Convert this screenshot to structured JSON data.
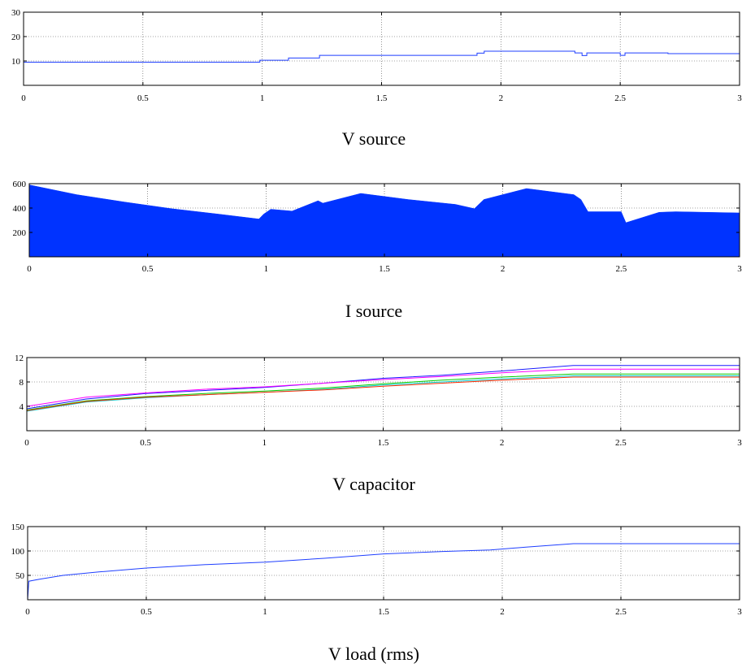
{
  "chart_data": [
    {
      "type": "line",
      "title": "V source",
      "xlim": [
        0,
        3
      ],
      "ylim": [
        0,
        30
      ],
      "xticks": [
        0,
        0.5,
        1,
        1.5,
        2,
        2.5,
        3
      ],
      "yticks": [
        10,
        20,
        30
      ],
      "grid": true,
      "series": [
        {
          "color": "#1f3fff",
          "x": [
            0,
            0.99,
            0.99,
            1.11,
            1.11,
            1.24,
            1.24,
            1.9,
            1.9,
            1.93,
            1.93,
            2.31,
            2.31,
            2.34,
            2.34,
            2.36,
            2.36,
            2.5,
            2.5,
            2.52,
            2.52,
            2.7,
            2.7,
            3.0
          ],
          "y": [
            9.5,
            9.5,
            10.3,
            10.3,
            11.2,
            11.2,
            12.3,
            12.3,
            13.2,
            13.2,
            14.0,
            14.0,
            13.3,
            13.3,
            12.2,
            12.2,
            13.3,
            13.3,
            12.3,
            12.3,
            13.3,
            13.3,
            13.0,
            13.0
          ]
        }
      ]
    },
    {
      "type": "area",
      "title": "I source",
      "xlim": [
        0,
        3
      ],
      "ylim": [
        0,
        600
      ],
      "xticks": [
        0,
        0.5,
        1,
        1.5,
        2,
        2.5,
        3
      ],
      "yticks": [
        200,
        400,
        600
      ],
      "grid": true,
      "series": [
        {
          "color": "#0033ff",
          "x": [
            0,
            0.2,
            0.4,
            0.6,
            0.8,
            0.97,
            0.97,
            0.99,
            0.99,
            1.02,
            1.02,
            1.11,
            1.11,
            1.22,
            1.22,
            1.24,
            1.24,
            1.4,
            1.6,
            1.8,
            1.88,
            1.88,
            1.92,
            1.92,
            2.1,
            2.3,
            2.3,
            2.33,
            2.33,
            2.36,
            2.36,
            2.5,
            2.5,
            2.52,
            2.52,
            2.66,
            2.66,
            2.73,
            2.73,
            3.0
          ],
          "y": [
            590,
            510,
            450,
            395,
            350,
            310,
            310,
            350,
            350,
            390,
            390,
            375,
            375,
            460,
            460,
            440,
            440,
            520,
            470,
            430,
            395,
            395,
            470,
            470,
            560,
            510,
            510,
            470,
            470,
            370,
            370,
            370,
            370,
            280,
            280,
            365,
            365,
            370,
            370,
            360
          ]
        }
      ]
    },
    {
      "type": "line",
      "title": "V capacitor",
      "xlim": [
        0,
        3
      ],
      "ylim": [
        0,
        12
      ],
      "xticks": [
        0,
        0.5,
        1,
        1.5,
        2,
        2.5,
        3
      ],
      "yticks": [
        4,
        8,
        12
      ],
      "grid": true,
      "series": [
        {
          "color": "#1a1aff",
          "x": [
            0,
            0.25,
            0.5,
            0.75,
            1.0,
            1.25,
            1.5,
            1.75,
            2.0,
            2.3,
            2.5,
            2.75,
            3.0
          ],
          "y": [
            3.6,
            5.2,
            6.1,
            6.6,
            7.1,
            7.8,
            8.6,
            9.1,
            9.8,
            10.7,
            10.7,
            10.7,
            10.7
          ]
        },
        {
          "color": "#ff00ff",
          "x": [
            0,
            0.25,
            0.5,
            0.75,
            1.0,
            1.25,
            1.5,
            1.75,
            2.0,
            2.3,
            2.5,
            2.75,
            3.0
          ],
          "y": [
            4.0,
            5.5,
            6.2,
            6.8,
            7.2,
            7.8,
            8.4,
            8.9,
            9.5,
            10.1,
            10.1,
            10.1,
            10.1
          ]
        },
        {
          "color": "#00cc00",
          "x": [
            0,
            0.25,
            0.5,
            0.75,
            1.0,
            1.25,
            1.5,
            1.75,
            2.0,
            2.3,
            2.5,
            2.75,
            3.0
          ],
          "y": [
            3.4,
            4.9,
            5.6,
            6.1,
            6.5,
            7.0,
            7.7,
            8.3,
            8.8,
            9.3,
            9.3,
            9.3,
            9.3
          ]
        },
        {
          "color": "#00cccc",
          "x": [
            0,
            0.25,
            0.5,
            0.75,
            1.0,
            1.25,
            1.5,
            1.75,
            2.0,
            2.3,
            2.5,
            2.75,
            3.0
          ],
          "y": [
            3.2,
            4.7,
            5.4,
            5.9,
            6.3,
            6.8,
            7.5,
            8.0,
            8.5,
            9.0,
            9.0,
            9.0,
            9.0
          ]
        },
        {
          "color": "#ff2a00",
          "x": [
            0,
            0.25,
            0.5,
            0.75,
            1.0,
            1.25,
            1.5,
            1.75,
            2.0,
            2.3,
            2.5,
            2.75,
            3.0
          ],
          "y": [
            3.3,
            4.8,
            5.5,
            5.9,
            6.3,
            6.7,
            7.3,
            7.8,
            8.3,
            8.8,
            8.8,
            8.8,
            8.8
          ]
        }
      ]
    },
    {
      "type": "line",
      "title": "V load (rms)",
      "xlim": [
        0,
        3
      ],
      "ylim": [
        0,
        150
      ],
      "xticks": [
        0,
        0.5,
        1,
        1.5,
        2,
        2.5,
        3
      ],
      "yticks": [
        50,
        100,
        150
      ],
      "grid": true,
      "series": [
        {
          "color": "#1f3fff",
          "x": [
            0,
            0.005,
            0.05,
            0.15,
            0.3,
            0.5,
            0.75,
            1.0,
            1.25,
            1.5,
            1.75,
            1.95,
            2.1,
            2.3,
            2.5,
            2.75,
            3.0
          ],
          "y": [
            0,
            38,
            42,
            50,
            57,
            65,
            72,
            77,
            85,
            94,
            99,
            102,
            108,
            115,
            115,
            115,
            115
          ]
        }
      ]
    }
  ]
}
